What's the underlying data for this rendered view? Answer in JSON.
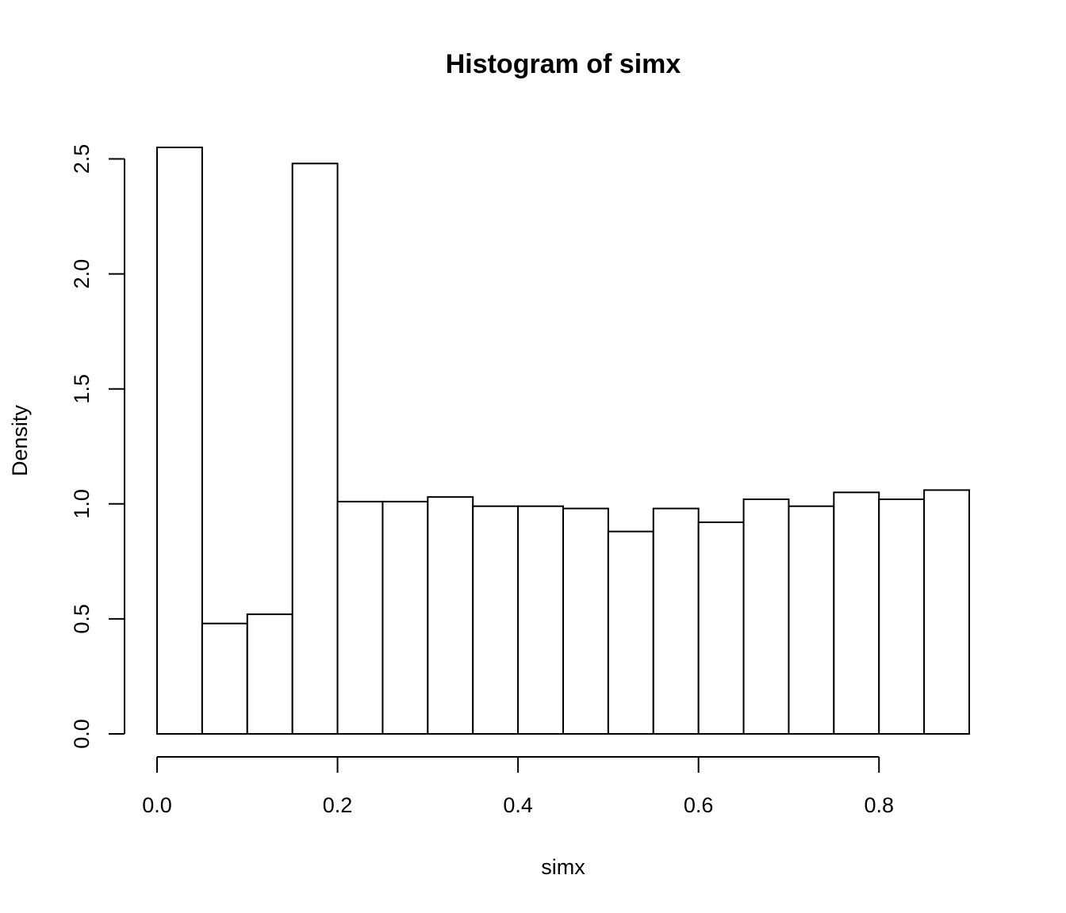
{
  "chart_data": {
    "type": "bar",
    "title": "Histogram of simx",
    "xlabel": "simx",
    "ylabel": "Density",
    "xlim": [
      0,
      0.9
    ],
    "ylim": [
      0,
      2.55
    ],
    "bin_width": 0.05,
    "bin_edges": [
      0.0,
      0.05,
      0.1,
      0.15,
      0.2,
      0.25,
      0.3,
      0.35,
      0.4,
      0.45,
      0.5,
      0.55,
      0.6,
      0.65,
      0.7,
      0.75,
      0.8,
      0.85,
      0.9
    ],
    "values": [
      2.55,
      0.48,
      0.52,
      2.48,
      1.01,
      1.01,
      1.03,
      0.99,
      0.99,
      0.98,
      0.88,
      0.98,
      0.92,
      1.02,
      0.99,
      1.05,
      1.02,
      1.06
    ],
    "x_ticks": [
      0.0,
      0.2,
      0.4,
      0.6,
      0.8
    ],
    "x_tick_labels": [
      "0.0",
      "0.2",
      "0.4",
      "0.6",
      "0.8"
    ],
    "y_ticks": [
      0.0,
      0.5,
      1.0,
      1.5,
      2.0,
      2.5
    ],
    "y_tick_labels": [
      "0.0",
      "0.5",
      "1.0",
      "1.5",
      "2.0",
      "2.5"
    ],
    "grid": false
  }
}
